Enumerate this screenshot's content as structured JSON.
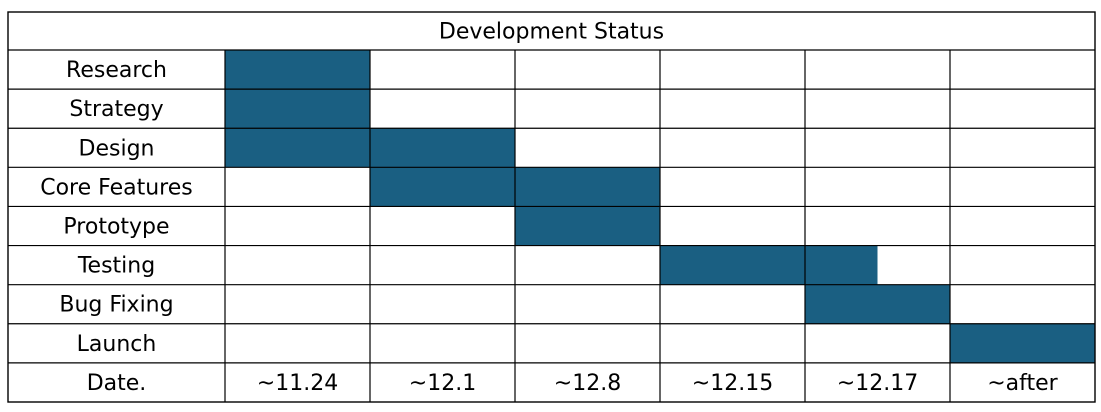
{
  "chart_data": {
    "type": "table",
    "title": "Development Status",
    "date_label": "Date.",
    "columns": [
      "~11.24",
      "~12.1",
      "~12.8",
      "~12.15",
      "~12.17",
      "~after"
    ],
    "tasks": [
      {
        "name": "Research",
        "start": 0,
        "end": 1
      },
      {
        "name": "Strategy",
        "start": 0,
        "end": 1
      },
      {
        "name": "Design",
        "start": 0,
        "end": 2
      },
      {
        "name": "Core Features",
        "start": 1,
        "end": 3
      },
      {
        "name": "Prototype",
        "start": 2,
        "end": 3
      },
      {
        "name": "Testing",
        "start": 3,
        "end": 4.5
      },
      {
        "name": "Bug Fixing",
        "start": 4,
        "end": 5
      },
      {
        "name": "Launch",
        "start": 5,
        "end": 6
      }
    ],
    "bar_color": "#1A5F82",
    "grid": true
  }
}
